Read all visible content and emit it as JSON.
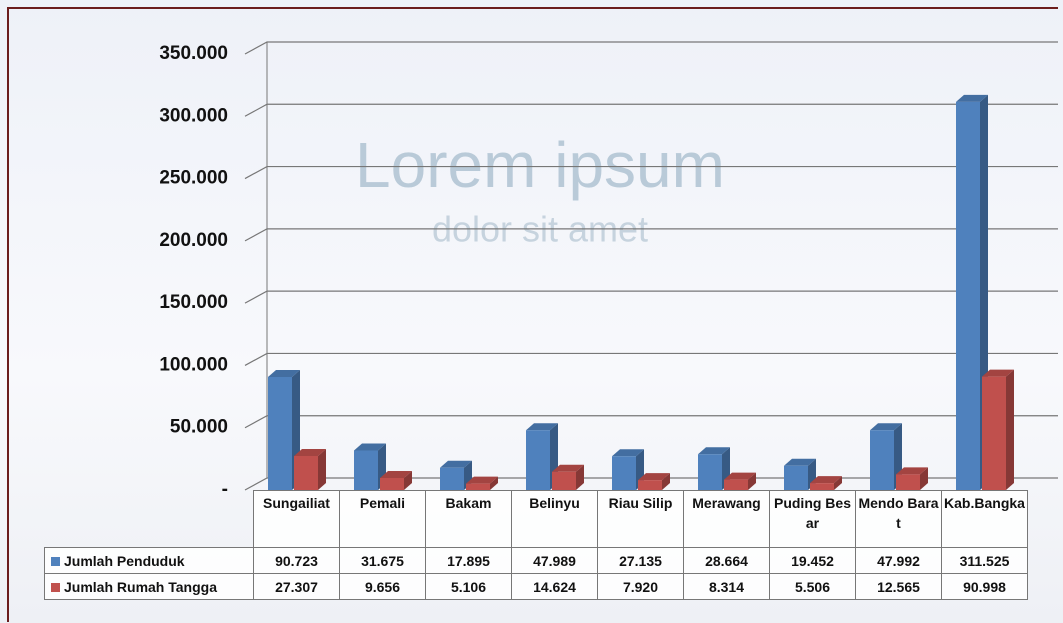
{
  "chart_data": {
    "type": "bar3d",
    "watermark": {
      "title": "Lorem ipsum",
      "subtitle": "dolor sit amet"
    },
    "categories": [
      "Sungailiat",
      "Pemali",
      "Bakam",
      "Belinyu",
      "Riau Silip",
      "Merawang",
      "Puding Besar",
      "Mendo Barat",
      "Kab.Bangka"
    ],
    "series": [
      {
        "name": "Jumlah Penduduk",
        "color": "#4f81bd",
        "values": [
          90723,
          31675,
          17895,
          47989,
          27135,
          28664,
          19452,
          47992,
          311525
        ],
        "value_labels": [
          "90.723",
          "31.675",
          "17.895",
          "47.989",
          "27.135",
          "28.664",
          "19.452",
          "47.992",
          "311.525"
        ]
      },
      {
        "name": "Jumlah Rumah Tangga",
        "color": "#c0504d",
        "values": [
          27307,
          9656,
          5106,
          14624,
          7920,
          8314,
          5506,
          12565,
          90998
        ],
        "value_labels": [
          "27.307",
          "9.656",
          "5.106",
          "14.624",
          "7.920",
          "8.314",
          "5.506",
          "12.565",
          "90.998"
        ]
      }
    ],
    "ylim": [
      0,
      350000
    ],
    "yticks": [
      {
        "value": 0,
        "label": "-"
      },
      {
        "value": 50000,
        "label": "50.000"
      },
      {
        "value": 100000,
        "label": "100.000"
      },
      {
        "value": 150000,
        "label": "150.000"
      },
      {
        "value": 200000,
        "label": "200.000"
      },
      {
        "value": 250000,
        "label": "250.000"
      },
      {
        "value": 300000,
        "label": "300.000"
      },
      {
        "value": 350000,
        "label": "350.000"
      }
    ],
    "grid": true
  }
}
